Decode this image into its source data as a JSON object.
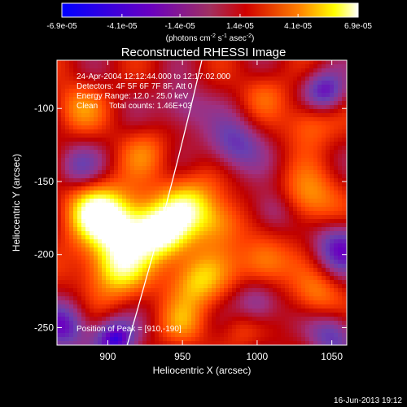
{
  "chart_data": {
    "type": "heatmap",
    "title": "Reconstructed RHESSI Image",
    "xlabel": "Heliocentric X (arcsec)",
    "ylabel": "Heliocentric Y (arcsec)",
    "xlim": [
      866,
      1060
    ],
    "ylim": [
      -262,
      -67
    ],
    "x_ticks": [
      900,
      950,
      1000,
      1050
    ],
    "x_tick_labels": [
      "900",
      "950",
      "1000",
      "1050"
    ],
    "y_ticks": [
      -100,
      -150,
      -200,
      -250
    ],
    "y_tick_labels": [
      "-100",
      "-150",
      "-200",
      "-250"
    ],
    "colorbar": {
      "min": -6.9e-05,
      "max": 6.9e-05,
      "tick_values": [
        -6.9e-05,
        -4.1e-05,
        -1.4e-05,
        1.4e-05,
        4.1e-05,
        6.9e-05
      ],
      "tick_labels": [
        "-6.9e-05",
        "-4.1e-05",
        "-1.4e-05",
        "1.4e-05",
        "4.1e-05",
        "6.9e-05"
      ],
      "units_label": "(photons cm",
      "units_exp1": "-2",
      "units_mid": " s",
      "units_exp2": "-1",
      "units_end": " asec",
      "units_exp3": "-2",
      "units_close": ")"
    },
    "annotations": [
      "24-Apr-2004 12:12:44.000 to 12:17:02.000",
      "Detectors: 4F 5F 6F 7F 8F, Att 0",
      "Energy Range: 12.0 - 25.0 keV",
      "Clean     Total counts: 1.46E+03"
    ],
    "peak_label": "Position of Peak = [910,-190]",
    "peak_position": [
      910,
      -190
    ],
    "limb_x_at_top": 963,
    "limb_x_at_bottom": 913,
    "blobs": [
      {
        "x": 935,
        "y": -185,
        "v": 6.9e-05,
        "r": 14
      },
      {
        "x": 905,
        "y": -178,
        "v": 5.8e-05,
        "r": 16
      },
      {
        "x": 905,
        "y": -210,
        "v": 5.2e-05,
        "r": 15
      },
      {
        "x": 888,
        "y": -170,
        "v": 4e-05,
        "r": 14
      },
      {
        "x": 955,
        "y": -165,
        "v": 4.4e-05,
        "r": 14
      },
      {
        "x": 960,
        "y": -218,
        "v": 4.6e-05,
        "r": 14
      },
      {
        "x": 975,
        "y": -178,
        "v": 3.4e-05,
        "r": 12
      },
      {
        "x": 1005,
        "y": -205,
        "v": 4e-05,
        "r": 12
      },
      {
        "x": 1035,
        "y": -162,
        "v": 3.8e-05,
        "r": 14
      },
      {
        "x": 1040,
        "y": -228,
        "v": 3e-05,
        "r": 12
      },
      {
        "x": 1035,
        "y": -110,
        "v": 3e-05,
        "r": 12
      },
      {
        "x": 925,
        "y": -130,
        "v": 2.4e-05,
        "r": 12
      },
      {
        "x": 880,
        "y": -100,
        "v": 3e-05,
        "r": 12
      },
      {
        "x": 1005,
        "y": -90,
        "v": 2e-05,
        "r": 11
      },
      {
        "x": 950,
        "y": -248,
        "v": 2.6e-05,
        "r": 11
      },
      {
        "x": 990,
        "y": -250,
        "v": 1.8e-05,
        "r": 10
      },
      {
        "x": 985,
        "y": -125,
        "v": -4e-05,
        "r": 13
      },
      {
        "x": 1045,
        "y": -88,
        "v": -5e-05,
        "r": 10
      },
      {
        "x": 1055,
        "y": -195,
        "v": -4.8e-05,
        "r": 12
      },
      {
        "x": 1010,
        "y": -170,
        "v": -3e-05,
        "r": 11
      },
      {
        "x": 870,
        "y": -250,
        "v": -4.5e-05,
        "r": 12
      },
      {
        "x": 905,
        "y": -258,
        "v": -6e-05,
        "r": 10
      },
      {
        "x": 1050,
        "y": -255,
        "v": -4e-05,
        "r": 11
      },
      {
        "x": 880,
        "y": -140,
        "v": -3.2e-05,
        "r": 11
      },
      {
        "x": 950,
        "y": -100,
        "v": -2.8e-05,
        "r": 12
      },
      {
        "x": 1000,
        "y": -235,
        "v": -3.4e-05,
        "r": 11
      }
    ],
    "colormap": [
      "#0000ff",
      "#6a00c0",
      "#6a40b0",
      "#a03080",
      "#c00000",
      "#ff4000",
      "#ff9000",
      "#ffff00",
      "#ffffff"
    ]
  },
  "footer": {
    "date": "16-Jun-2013 19:12"
  }
}
